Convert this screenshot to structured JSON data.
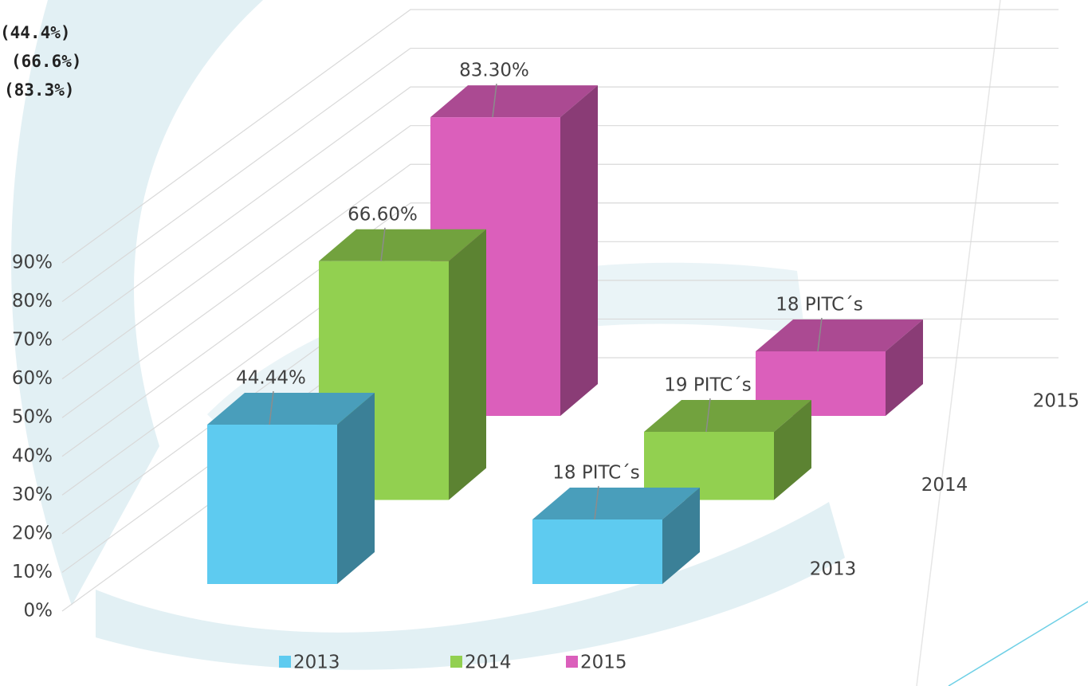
{
  "chart_data": {
    "type": "bar",
    "annotations": [
      "(44.4%)",
      "(66.6%)",
      "(83.3%)"
    ],
    "categories": [
      null,
      null
    ],
    "series": [
      {
        "name": "2013",
        "color": "#5ecbf0",
        "values": [
          44.44,
          18
        ],
        "value_labels": [
          "44.44%",
          "18 PITC´s"
        ]
      },
      {
        "name": "2014",
        "color": "#92d050",
        "values": [
          66.6,
          19
        ],
        "value_labels": [
          "66.60%",
          "19 PITC´s"
        ]
      },
      {
        "name": "2015",
        "color": "#db5fbb",
        "values": [
          83.3,
          18
        ],
        "value_labels": [
          "83.30%",
          "18 PITC´s"
        ]
      }
    ],
    "ylim": [
      0,
      90
    ],
    "yticks": [
      {
        "value": 0,
        "label": "0%"
      },
      {
        "value": 10,
        "label": "10%"
      },
      {
        "value": 20,
        "label": "20%"
      },
      {
        "value": 30,
        "label": "30%"
      },
      {
        "value": 40,
        "label": "40%"
      },
      {
        "value": 50,
        "label": "50%"
      },
      {
        "value": 60,
        "label": "60%"
      },
      {
        "value": 70,
        "label": "70%"
      },
      {
        "value": 80,
        "label": "80%"
      },
      {
        "value": 90,
        "label": "90%"
      }
    ],
    "grid": true,
    "legend": "bottom"
  }
}
